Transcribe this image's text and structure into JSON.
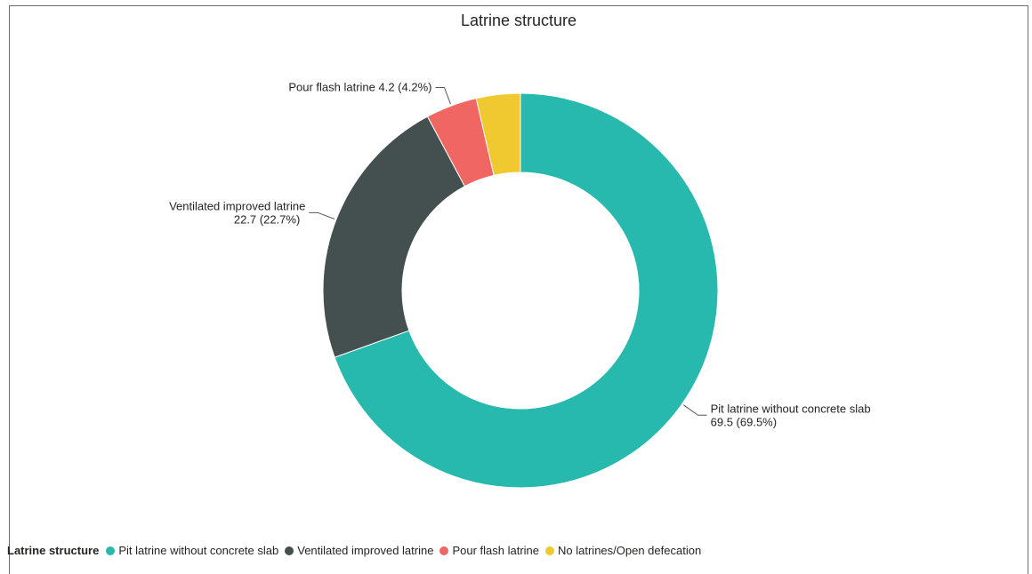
{
  "chart_data": {
    "type": "pie",
    "donut": true,
    "title": "Latrine structure",
    "legend_title": "Latrine structure",
    "legend_position": "bottom-left",
    "slices": [
      {
        "name": "Pit latrine without concrete slab",
        "value": 69.5,
        "percent": "69.5%",
        "color": "#27b9ad",
        "label_line1": "Pit latrine without concrete slab",
        "label_line2": "69.5 (69.5%)"
      },
      {
        "name": "Ventilated improved latrine",
        "value": 22.7,
        "percent": "22.7%",
        "color": "#444f50",
        "label_line1": "Ventilated improved latrine",
        "label_line2": "22.7 (22.7%)"
      },
      {
        "name": "Pour flash latrine",
        "value": 4.2,
        "percent": "4.2%",
        "color": "#ef6663",
        "label_line1": "Pour flash latrine 4.2 (4.2%)",
        "label_line2": ""
      },
      {
        "name": "No latrines/Open defecation",
        "value": 3.6,
        "percent": "3.6%",
        "color": "#f0c931",
        "label_line1": "",
        "label_line2": ""
      }
    ]
  }
}
